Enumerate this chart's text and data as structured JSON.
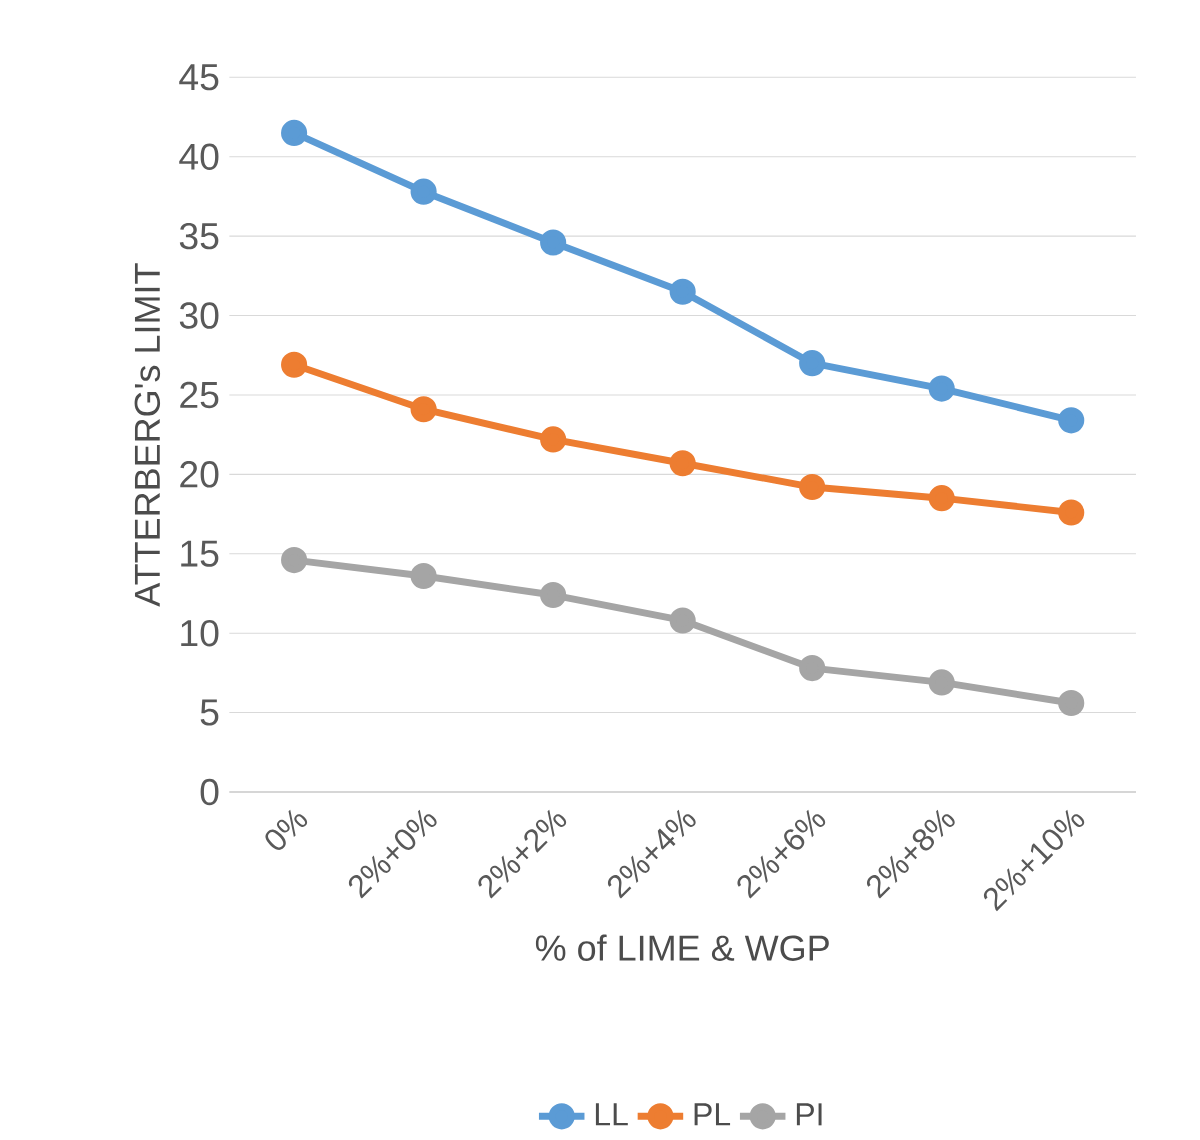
{
  "chart_data": {
    "type": "line",
    "xlabel": "% of LIME & WGP",
    "ylabel": "ATTERBERG's LIMIT",
    "categories": [
      "0%",
      "2%+0%",
      "2%+2%",
      "2%+4%",
      "2%+6%",
      "2%+8%",
      "2%+10%"
    ],
    "series": [
      {
        "name": "LL",
        "color": "#5b9bd5",
        "values": [
          41.5,
          37.8,
          34.6,
          31.5,
          27.0,
          25.4,
          23.4
        ]
      },
      {
        "name": "PL",
        "color": "#ed7d31",
        "values": [
          26.9,
          24.1,
          22.2,
          20.7,
          19.2,
          18.5,
          17.6
        ]
      },
      {
        "name": "PI",
        "color": "#a5a5a5",
        "values": [
          14.6,
          13.6,
          12.4,
          10.8,
          7.8,
          6.9,
          5.6
        ]
      }
    ],
    "ylim": [
      0,
      45
    ],
    "yticks": [
      0,
      5,
      10,
      15,
      20,
      25,
      30,
      35,
      40,
      45
    ],
    "grid": "y",
    "legend": "bottom",
    "marker": "circle",
    "line_style": "solid"
  }
}
